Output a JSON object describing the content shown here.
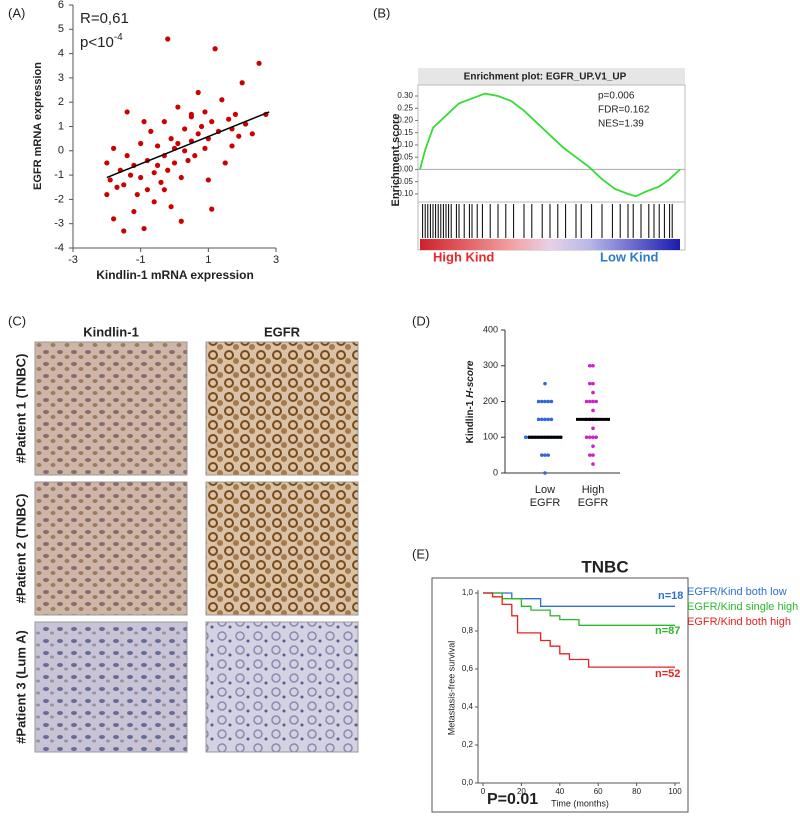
{
  "chart_data": [
    {
      "type": "scatter",
      "panel": "(A)",
      "annotation": "R=0,61",
      "annotation2": "p<10",
      "annotation2_sup": "-4",
      "xlabel": "Kindlin-1 mRNA expression",
      "ylabel": "EGFR mRNA expression",
      "color": "#cc0000",
      "line_color": "#000000",
      "x": [
        -2,
        -2,
        -1.9,
        -1.8,
        -1.8,
        -1.7,
        -1.6,
        -1.5,
        -1.5,
        -1.4,
        -1.3,
        -1.2,
        -1.2,
        -1.1,
        -1,
        -1,
        -0.9,
        -0.8,
        -0.8,
        -0.7,
        -0.6,
        -0.6,
        -0.5,
        -0.5,
        -0.4,
        -0.3,
        -0.3,
        -0.2,
        -0.1,
        -0.1,
        0,
        0,
        0.1,
        0.1,
        0.2,
        0.3,
        0.3,
        0.4,
        0.5,
        0.5,
        0.6,
        0.7,
        0.7,
        0.8,
        0.9,
        0.9,
        1,
        1,
        1.1,
        1.2,
        1.3,
        1.4,
        1.5,
        1.6,
        1.7,
        1.8,
        1.9,
        2,
        2.1,
        2.3,
        2.5,
        2.7,
        -0.3,
        1.1,
        0.2,
        -1.4,
        -0.9,
        1.7,
        0.5,
        -0.2
      ],
      "values": [
        -1.8,
        -0.5,
        -1.2,
        -2.8,
        0.1,
        -1.5,
        -0.8,
        -3.3,
        -1.4,
        -0.2,
        -1,
        -2.5,
        -0.6,
        -1.8,
        0.3,
        -1.1,
        -3.2,
        -0.4,
        -1.6,
        0.8,
        -0.9,
        -2.1,
        0.2,
        -0.6,
        -1.3,
        1.2,
        -0.2,
        -0.8,
        0.5,
        -2.3,
        0.1,
        -0.5,
        1.8,
        0.3,
        -1.1,
        0.9,
        0,
        -0.4,
        1.4,
        0.4,
        -0.2,
        2.4,
        0.7,
        1,
        0.1,
        1.6,
        0.5,
        -1.2,
        1.2,
        4.2,
        0.8,
        2.1,
        -0.5,
        1.3,
        0.9,
        1.5,
        0.6,
        2.8,
        1.1,
        0.7,
        3.6,
        1.5,
        -1.6,
        -2.4,
        -2.9,
        1.6,
        1.2,
        0.2,
        1.5,
        4.6
      ],
      "fit_x": [
        -2,
        2.8
      ],
      "fit_y": [
        -1.1,
        1.6
      ],
      "xlim": [
        -3,
        3
      ],
      "xticks": [
        -3,
        -1,
        1,
        3
      ],
      "ylim": [
        -4,
        6
      ],
      "yticks": [
        -4,
        -3,
        -2,
        -1,
        0,
        1,
        2,
        3,
        4,
        5,
        6
      ]
    },
    {
      "type": "line",
      "panel": "(B)",
      "title": "Enrichment plot: EGFR_UP.V1_UP",
      "ylabel": "Enrichment score",
      "annotations": [
        "p=0.006",
        "FDR=0.162",
        "NES=1.39"
      ],
      "color": "#33dd33",
      "x": [
        0,
        0.02,
        0.05,
        0.1,
        0.15,
        0.2,
        0.25,
        0.3,
        0.35,
        0.4,
        0.45,
        0.5,
        0.55,
        0.6,
        0.65,
        0.7,
        0.75,
        0.8,
        0.83,
        0.87,
        0.92,
        0.96,
        1
      ],
      "values": [
        0,
        0.08,
        0.17,
        0.22,
        0.27,
        0.29,
        0.31,
        0.3,
        0.28,
        0.24,
        0.19,
        0.14,
        0.09,
        0.05,
        0.01,
        -0.04,
        -0.08,
        -0.1,
        -0.11,
        -0.09,
        -0.07,
        -0.04,
        0
      ],
      "hits": [
        0.01,
        0.02,
        0.03,
        0.04,
        0.05,
        0.06,
        0.07,
        0.08,
        0.09,
        0.1,
        0.11,
        0.12,
        0.14,
        0.15,
        0.17,
        0.19,
        0.2,
        0.22,
        0.24,
        0.27,
        0.3,
        0.33,
        0.36,
        0.4,
        0.43,
        0.47,
        0.5,
        0.53,
        0.56,
        0.6,
        0.62,
        0.66,
        0.7,
        0.74,
        0.77,
        0.8,
        0.82,
        0.85,
        0.88,
        0.9,
        0.92,
        0.94,
        0.96,
        0.97
      ],
      "high_label": "High Kind",
      "high_color": "#e8262b",
      "low_label": "Low Kind",
      "low_color": "#2b7bc8",
      "xlim": [
        0,
        1
      ],
      "ylim": [
        -0.125,
        0.345
      ],
      "yticks": [
        {
          "value": 0.3,
          "label": "0.30"
        },
        {
          "value": 0.25,
          "label": "0.25"
        },
        {
          "value": 0.2,
          "label": "0.20"
        },
        {
          "value": 0.15,
          "label": "0.15"
        },
        {
          "value": 0.1,
          "label": "0.10"
        },
        {
          "value": 0.05,
          "label": "0.05"
        },
        {
          "value": 0,
          "label": "0.00"
        },
        {
          "value": -0.05,
          "label": "-0.05"
        },
        {
          "value": -0.1,
          "label": "-0.10"
        }
      ]
    },
    {
      "type": "strip",
      "panel": "(D)",
      "ylabel": "Kindlin-1 ",
      "ylabel_italic": "H-score",
      "categories": [
        [
          "Low",
          "EGFR"
        ],
        [
          "High",
          "EGFR"
        ]
      ],
      "series": [
        {
          "color": "#3366dd",
          "values": [
            0,
            50,
            50,
            50,
            100,
            100,
            100,
            100,
            100,
            100,
            100,
            100,
            100,
            100,
            100,
            100,
            150,
            150,
            150,
            150,
            150,
            200,
            200,
            200,
            200,
            200,
            250
          ],
          "median": 100
        },
        {
          "color": "#cc22cc",
          "values": [
            25,
            50,
            50,
            75,
            100,
            100,
            100,
            100,
            125,
            150,
            150,
            150,
            150,
            175,
            200,
            200,
            200,
            200,
            225,
            250,
            250,
            300,
            300
          ],
          "median": 150
        }
      ],
      "ylim": [
        0,
        400
      ],
      "yticks": [
        0,
        100,
        200,
        300,
        400
      ]
    },
    {
      "type": "survival",
      "panel": "(E)",
      "title": "TNBC",
      "ylabel": "Metastasis-free survival",
      "xlabel": "Time (months)",
      "annotation": "P=0.01",
      "legend": "right",
      "series": [
        {
          "name": "EGFR/Kind both low",
          "color": "#2e6fd0",
          "n_label": "n=18",
          "x": [
            0,
            15,
            30,
            100
          ],
          "values": [
            1,
            0.97,
            0.93,
            0.93
          ]
        },
        {
          "name": "EGFR/Kind single high",
          "color": "#2cb82c",
          "n_label": "n=87",
          "x": [
            0,
            10,
            20,
            25,
            35,
            40,
            50,
            100
          ],
          "values": [
            1,
            0.97,
            0.93,
            0.91,
            0.88,
            0.86,
            0.83,
            0.83
          ]
        },
        {
          "name": "EGFR/Kind both high",
          "color": "#e82020",
          "n_label": "n=52",
          "x": [
            0,
            5,
            10,
            15,
            18,
            30,
            35,
            40,
            45,
            55,
            100
          ],
          "values": [
            1,
            0.98,
            0.94,
            0.88,
            0.79,
            0.75,
            0.72,
            0.68,
            0.65,
            0.61,
            0.61
          ]
        }
      ],
      "xlim": [
        0,
        100
      ],
      "xticks": [
        0,
        20,
        40,
        60,
        80,
        100
      ],
      "ylim": [
        0,
        1
      ],
      "yticks": [
        {
          "value": 0,
          "label": "0,0"
        },
        {
          "value": 0.2,
          "label": "0,2"
        },
        {
          "value": 0.4,
          "label": "0,4"
        },
        {
          "value": 0.6,
          "label": "0,6"
        },
        {
          "value": 0.8,
          "label": "0,8"
        },
        {
          "value": 1,
          "label": "1,0"
        }
      ]
    }
  ],
  "image_panel": {
    "panel": "(C)",
    "columns": [
      "Kindlin-1",
      "EGFR"
    ],
    "rows": [
      "#Patient 1 (TNBC)",
      "#Patient 2 (TNBC)",
      "#Patient 3 (Lum A)"
    ]
  }
}
